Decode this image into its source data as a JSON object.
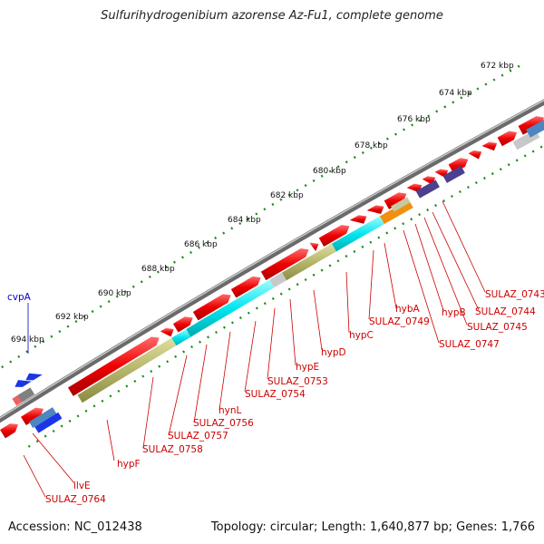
{
  "title": "Sulfurihydrogenibium azorense Az-Fu1, complete genome",
  "footer": {
    "accession": "Accession: NC_012438",
    "stats": "Topology: circular; Length: 1,640,877 bp; Genes: 1,766"
  },
  "colors": {
    "gene_forward": "#ee0000",
    "gene_highlight_cyan": "#00e5ee",
    "gene_highlight_olive": "#b5b56a",
    "gene_orange": "#f0900e",
    "gene_purple": "#4c3f8f",
    "gene_blue": "#1a36e6",
    "backbone": "#7a7a7a",
    "tick_green": "#1b8a1b",
    "label_red": "#cc0000",
    "label_blue": "#0000cc"
  },
  "kbp_scale": [
    "672 kbp",
    "674 kbp",
    "676 kbp",
    "678 kbp",
    "680 kbp",
    "682 kbp",
    "684 kbp",
    "686 kbp",
    "688 kbp",
    "690 kbp",
    "692 kbp",
    "694 kbp"
  ],
  "gene_labels": [
    {
      "text": "SULAZ_0743",
      "color": "red"
    },
    {
      "text": "SULAZ_0744",
      "color": "red"
    },
    {
      "text": "SULAZ_0745",
      "color": "red"
    },
    {
      "text": "hypB",
      "color": "red"
    },
    {
      "text": "SULAZ_0747",
      "color": "red"
    },
    {
      "text": "hybA",
      "color": "red"
    },
    {
      "text": "SULAZ_0749",
      "color": "red"
    },
    {
      "text": "hypC",
      "color": "red"
    },
    {
      "text": "hypD",
      "color": "red"
    },
    {
      "text": "hypE",
      "color": "red"
    },
    {
      "text": "SULAZ_0753",
      "color": "red"
    },
    {
      "text": "SULAZ_0754",
      "color": "red"
    },
    {
      "text": "hynL",
      "color": "red"
    },
    {
      "text": "SULAZ_0756",
      "color": "red"
    },
    {
      "text": "SULAZ_0757",
      "color": "red"
    },
    {
      "text": "SULAZ_0758",
      "color": "red"
    },
    {
      "text": "hypF",
      "color": "red"
    },
    {
      "text": "ilvE",
      "color": "red"
    },
    {
      "text": "SULAZ_0764",
      "color": "red"
    },
    {
      "text": "cvpA",
      "color": "blue"
    }
  ]
}
